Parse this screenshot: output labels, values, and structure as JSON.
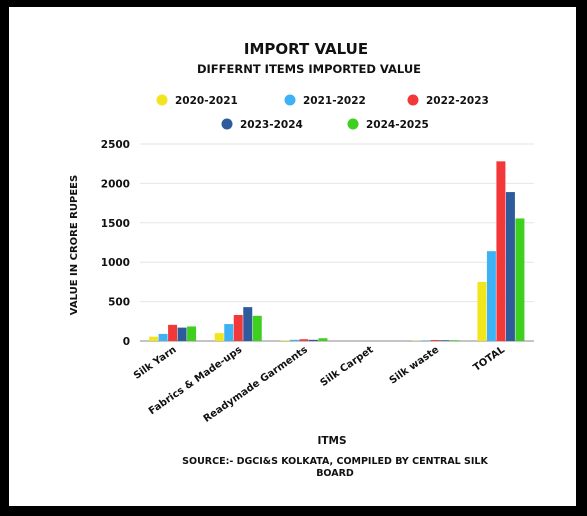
{
  "chart_data": {
    "type": "bar",
    "title": "IMPORT VALUE",
    "subtitle": "DIFFERNT ITEMS IMPORTED VALUE",
    "xlabel": "ITMS",
    "ylabel": "VALUE IN CRORE RUPEES",
    "source": "SOURCE:- DGCI&S KOLKATA, COMPILED BY CENTRAL SILK BOARD",
    "ylim": [
      0,
      2500
    ],
    "yticks": [
      0,
      500,
      1000,
      1500,
      2000,
      2500
    ],
    "grid": true,
    "legend_position": "top",
    "categories": [
      "Silk Yarn",
      "Fabrics & Made-ups",
      "Readymade Garments",
      "Silk Carpet",
      "Silk waste",
      "TOTAL"
    ],
    "series": [
      {
        "name": "2020-2021",
        "color": "#f2e51d",
        "values": [
          55,
          100,
          8,
          0,
          4,
          750
        ]
      },
      {
        "name": "2021-2022",
        "color": "#3fb2f5",
        "values": [
          90,
          215,
          15,
          0,
          8,
          1140
        ]
      },
      {
        "name": "2022-2023",
        "color": "#f23838",
        "values": [
          205,
          330,
          22,
          0,
          12,
          2280
        ]
      },
      {
        "name": "2023-2024",
        "color": "#2e5b9c",
        "values": [
          170,
          430,
          15,
          0,
          10,
          1890
        ]
      },
      {
        "name": "2024-2025",
        "color": "#3ecf1f",
        "values": [
          185,
          320,
          35,
          0,
          10,
          1555
        ]
      }
    ]
  }
}
